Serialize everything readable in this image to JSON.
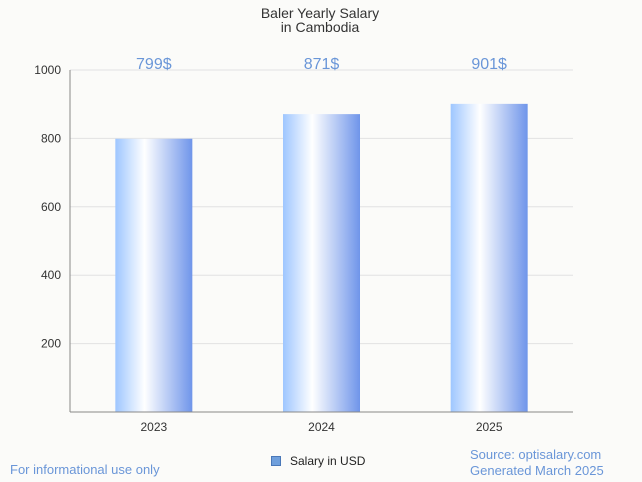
{
  "chart_data": {
    "type": "bar",
    "title": "Baler Yearly Salary",
    "subtitle": "in Cambodia",
    "categories": [
      "2023",
      "2024",
      "2025"
    ],
    "values": [
      799,
      871,
      901
    ],
    "data_labels": [
      "799$",
      "871$",
      "901$"
    ],
    "ylim": [
      0,
      1000
    ],
    "yticks": [
      200,
      400,
      600,
      800,
      1000
    ],
    "xlabel": "",
    "ylabel": "",
    "grid": true,
    "legend": {
      "label": "Salary in USD",
      "position": "bottom"
    },
    "colors": {
      "bar_light": "#ffffff",
      "bar_mid": "#9ec6ff",
      "bar_dark": "#6f95ea",
      "label": "#6a96d8",
      "grid": "#e2e2e2"
    }
  },
  "footer": {
    "disclaimer": "For informational use only",
    "source": "Source: optisalary.com",
    "generated": "Generated March 2025"
  }
}
